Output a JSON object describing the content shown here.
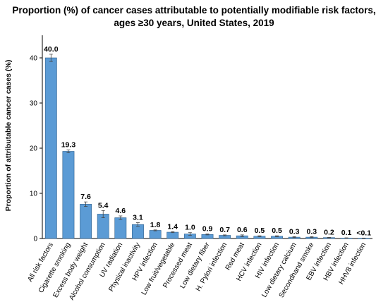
{
  "chart_data": {
    "type": "bar",
    "title_lines": [
      "Proportion (%) of cancer cases attributable to potentially modifiable risk factors,",
      "ages ≥30 years, United States, 2019"
    ],
    "ylabel": "Proportion of attributable cancer cases (%)",
    "xlabel": "",
    "ylim": [
      0,
      45
    ],
    "yticks": [
      0,
      10,
      20,
      30,
      40
    ],
    "grid": false,
    "categories": [
      "All risk factors",
      "Cigarette smoking",
      "Excess body weight",
      "Alcohol consumption",
      "UV radiation",
      "Physical inactivity",
      "HPV infection",
      "Low fruit/vegetable",
      "Processed meat",
      "Low dietary fiber",
      "H. Pylori infection",
      "Red meat",
      "HCV infection",
      "HIV infection",
      "Low dietary calcium",
      "Secondhand smoke",
      "EBV infection",
      "HBV infection",
      "HHV8 infection"
    ],
    "values": [
      40.0,
      19.3,
      7.6,
      5.4,
      4.6,
      3.1,
      1.8,
      1.4,
      1.0,
      0.9,
      0.7,
      0.6,
      0.5,
      0.5,
      0.3,
      0.3,
      0.2,
      0.1,
      0.05
    ],
    "value_labels": [
      "40.0",
      "19.3",
      "7.6",
      "5.4",
      "4.6",
      "3.1",
      "1.8",
      "1.4",
      "1.0",
      "0.9",
      "0.7",
      "0.6",
      "0.5",
      "0.5",
      "0.3",
      "0.3",
      "0.2",
      "0.1",
      "<0.1"
    ],
    "error_bars": [
      [
        39.2,
        40.8
      ],
      [
        19.0,
        19.6
      ],
      [
        7.1,
        8.1
      ],
      [
        4.6,
        6.2
      ],
      [
        4.2,
        5.0
      ],
      [
        2.7,
        3.5
      ],
      [
        1.7,
        1.9
      ],
      [
        1.3,
        1.5
      ],
      [
        0.7,
        1.3
      ],
      [
        0.8,
        1.0
      ],
      [
        0.6,
        0.8
      ],
      [
        0.4,
        0.8
      ],
      [
        0.4,
        0.6
      ],
      [
        0.4,
        0.6
      ],
      [
        0.2,
        0.4
      ],
      [
        0.2,
        0.4
      ],
      [
        0.15,
        0.25
      ],
      [
        0.05,
        0.15
      ],
      [
        0.0,
        0.1
      ]
    ],
    "colors": {
      "bar": "#5b9bd5",
      "bar_stroke": "#2e5f8c",
      "axis": "#000000",
      "error": "#444444"
    }
  }
}
